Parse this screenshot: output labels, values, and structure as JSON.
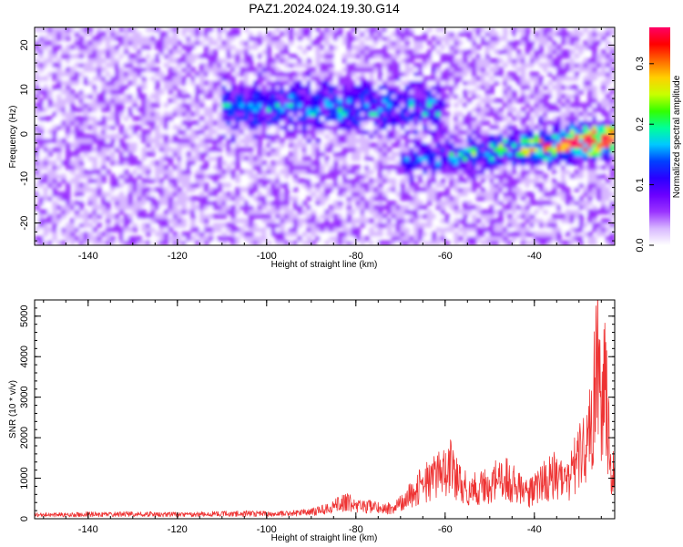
{
  "figure": {
    "title": "PAZ1.2024.024.19.30.G14"
  },
  "chart_data": [
    {
      "type": "heatmap",
      "xlabel": "Height of straight line (km)",
      "ylabel": "Frequency (Hz)",
      "xlim": [
        -152,
        -22
      ],
      "ylim": [
        -25,
        24
      ],
      "x_ticks": [
        -140,
        -120,
        -100,
        -80,
        -60,
        -40
      ],
      "y_ticks": [
        -20,
        -10,
        0,
        10,
        20
      ],
      "x_tick_labels": [
        "-140",
        "-120",
        "-100",
        "-80",
        "-60",
        "-40"
      ],
      "y_tick_labels": [
        "-20",
        "-10",
        "0",
        "10",
        "20"
      ],
      "colorbar": {
        "label": "Normalized spectral amplitude",
        "range": [
          0,
          0.36
        ],
        "ticks": [
          0,
          0.1,
          0.2,
          0.3
        ],
        "tick_labels": [
          "0.0",
          "0.1",
          "0.2",
          "0.3"
        ],
        "colors": [
          "#ffffff",
          "#d8b8ff",
          "#9a33ff",
          "#6a00ff",
          "#2a00ff",
          "#0040ff",
          "#00c8ff",
          "#00ff9a",
          "#33ff00",
          "#c8ff00",
          "#ffd000",
          "#ff6a00",
          "#ff0000",
          "#ff0066"
        ]
      },
      "features": [
        {
          "name": "background noise",
          "x_range": [
            -150,
            -22
          ],
          "freq_range": [
            -25,
            24
          ],
          "amplitude": 0.04
        },
        {
          "name": "diffuse band",
          "x_range": [
            -110,
            -60
          ],
          "freq_center": 6,
          "amplitude": 0.08
        },
        {
          "name": "strong signal track",
          "x_start": -70,
          "x_end": -22,
          "freq_start": -6,
          "freq_end": -1,
          "peak_x": -29,
          "peak_freq": -1,
          "peak_amplitude": 0.34
        }
      ],
      "grid": false
    },
    {
      "type": "line",
      "xlabel": "Height of straight line (km)",
      "ylabel": "SNR (10 * v/v)",
      "xlim": [
        -152,
        -22
      ],
      "ylim": [
        0,
        5400
      ],
      "x_ticks": [
        -140,
        -120,
        -100,
        -80,
        -60,
        -40
      ],
      "y_ticks": [
        0,
        1000,
        2000,
        3000,
        4000,
        5000
      ],
      "x_tick_labels": [
        "-140",
        "-120",
        "-100",
        "-80",
        "-60",
        "-40"
      ],
      "y_tick_labels": [
        "0",
        "1000",
        "2000",
        "3000",
        "4000",
        "5000"
      ],
      "series": [
        {
          "color": "#ee3333",
          "x": [
            -152,
            -145,
            -140,
            -135,
            -130,
            -125,
            -120,
            -115,
            -110,
            -105,
            -100,
            -95,
            -90,
            -87,
            -84,
            -82,
            -80,
            -77,
            -74,
            -71,
            -69,
            -67,
            -65,
            -63,
            -61,
            -59,
            -57,
            -55,
            -53,
            -51,
            -49,
            -47,
            -45,
            -43,
            -41,
            -39,
            -37,
            -35,
            -33,
            -31,
            -29,
            -27,
            -26,
            -25,
            -24,
            -23,
            -22
          ],
          "y": [
            120,
            130,
            140,
            130,
            150,
            140,
            130,
            140,
            150,
            160,
            150,
            170,
            200,
            300,
            450,
            550,
            350,
            400,
            300,
            350,
            600,
            800,
            1100,
            1200,
            1400,
            1700,
            1100,
            900,
            950,
            1000,
            1150,
            1300,
            1100,
            900,
            800,
            1100,
            1200,
            1400,
            1100,
            1600,
            2400,
            3000,
            5300,
            3500,
            4100,
            1500,
            1800
          ]
        }
      ],
      "grid": false
    }
  ]
}
